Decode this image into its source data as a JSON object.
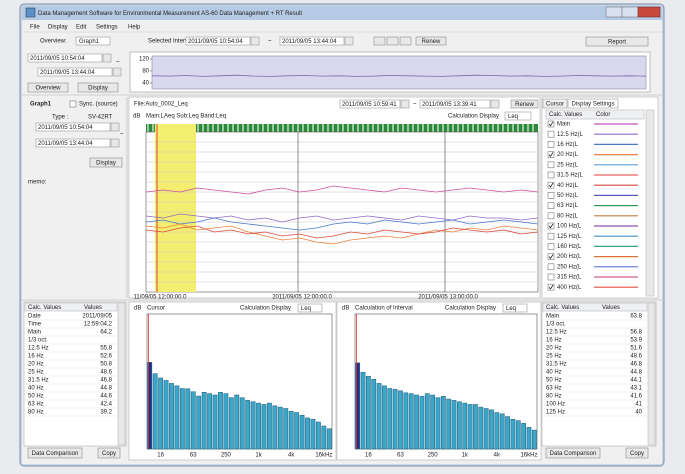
{
  "window_title": "Data Management Software for Environmental Measurement AS-60 Data Management + RT Result",
  "menu": [
    "File",
    "Display",
    "Edit",
    "Settings",
    "Help"
  ],
  "toolbar": {
    "overview_label": "Overview:",
    "overview_select": "Graph1",
    "interval_label": "Selected Interval:",
    "start": "2011/09/05 10:54:04",
    "tilde": "~",
    "end": "2011/09/05 13:44:04",
    "renew": "Renew",
    "report": "Report"
  },
  "overview": {
    "start": "2011/09/05 10:54:04",
    "tilde": "~",
    "end": "2011/09/05 13:44:04",
    "buttons": [
      "Overview",
      "Display"
    ],
    "chart": {
      "type": "line",
      "ylim": [
        20,
        130
      ],
      "yticks": [
        40,
        80,
        120
      ],
      "color": "#7a6aa8",
      "fill": "#d9d8ef",
      "values": [
        64,
        63,
        65,
        62,
        64,
        66,
        63,
        62,
        64,
        65,
        63,
        64,
        62,
        63,
        65,
        64,
        63,
        62,
        64,
        66,
        65,
        63,
        64,
        62,
        63,
        65,
        64,
        63,
        64,
        63
      ]
    }
  },
  "graph_panel": {
    "title": "Graph1",
    "sync": "Sync. (source)",
    "type_label": "Type :",
    "type_value": "SV-42RT",
    "start": "2011/09/05 10:54:04",
    "tilde": "~",
    "end": "2011/09/05 13:44:04",
    "display": "Display",
    "memo": "memo:"
  },
  "main_graph": {
    "file": "File:Auto_0002_Leq",
    "start": "2011/09/05 10:59:41",
    "tilde": "~",
    "end": "2011/09/05 13:39:41",
    "renew": "Renew",
    "unit": "dB",
    "subtitle": "Main:LAeq  Sub:Leq  Band:Leq",
    "calc_label": "Calculation Display",
    "calc_value": "Leq",
    "x_labels": [
      "11/09/05 12:00:00.0",
      "2011/09/05 12:00:00.0",
      "2011/09/05 13:00:00.0"
    ],
    "chart": {
      "type": "line",
      "ylim": [
        20,
        100
      ],
      "yticks": [
        25,
        30,
        35,
        40,
        45,
        50,
        55,
        60,
        65,
        70,
        75,
        80,
        85,
        90,
        95
      ],
      "grid": true,
      "series": [
        {
          "name": "Main",
          "color": "#d04fa0",
          "values": [
            70,
            71,
            70,
            72,
            71,
            70,
            69,
            71,
            72,
            70,
            71,
            73,
            72,
            71,
            70,
            72,
            71,
            70,
            71,
            72,
            71,
            70,
            71,
            70
          ]
        },
        {
          "name": "12.5 Hz",
          "color": "#8e6cc4",
          "values": [
            58,
            57,
            59,
            58,
            57,
            58,
            56,
            57,
            55,
            57,
            58,
            56,
            57,
            58,
            57,
            56,
            58,
            57,
            56,
            58,
            57,
            57,
            56,
            57
          ]
        },
        {
          "name": "16 Hz",
          "color": "#4a78c8",
          "values": [
            55,
            56,
            54,
            55,
            57,
            55,
            54,
            53,
            52,
            51,
            52,
            54,
            55,
            54,
            56,
            55,
            54,
            55,
            56,
            54,
            55,
            56,
            55,
            54
          ]
        },
        {
          "name": "20 Hz",
          "color": "#e8823c",
          "values": [
            53,
            52,
            54,
            51,
            52,
            53,
            50,
            48,
            46,
            47,
            45,
            44,
            46,
            47,
            48,
            47,
            49,
            51,
            50,
            52,
            51,
            53,
            52,
            51
          ]
        },
        {
          "name": "40 Hz",
          "color": "#d8483c",
          "values": [
            51,
            50,
            52,
            53,
            50,
            51,
            49,
            50,
            48,
            49,
            47,
            48,
            50,
            49,
            51,
            50,
            49,
            50,
            52,
            51,
            50,
            51,
            49,
            50
          ]
        }
      ]
    }
  },
  "settings_panel": {
    "tabs": [
      "Cursor",
      "Display Settings"
    ],
    "headers": [
      "Calc. Values",
      "Color"
    ],
    "items": [
      {
        "label": "Main",
        "checked": true,
        "color": "#c050c0"
      },
      {
        "label": "12.5 Hz(L",
        "checked": false,
        "color": "#8e6cc4"
      },
      {
        "label": "16 Hz(L",
        "checked": false,
        "color": "#4a78c8"
      },
      {
        "label": "20 Hz(L",
        "checked": true,
        "color": "#e8823c"
      },
      {
        "label": "25 Hz(L",
        "checked": false,
        "color": "#5aa0d8"
      },
      {
        "label": "31.5 Hz(L",
        "checked": false,
        "color": "#e86060"
      },
      {
        "label": "40 Hz(L",
        "checked": true,
        "color": "#d8483c"
      },
      {
        "label": "50 Hz(L",
        "checked": false,
        "color": "#5060c0"
      },
      {
        "label": "63 Hz(L",
        "checked": false,
        "color": "#3a9a5a"
      },
      {
        "label": "80 Hz(L",
        "checked": false,
        "color": "#c08040"
      },
      {
        "label": "100 Hz(L",
        "checked": true,
        "color": "#9050b0"
      },
      {
        "label": "125 Hz(L",
        "checked": false,
        "color": "#4090c0"
      },
      {
        "label": "160 Hz(L",
        "checked": false,
        "color": "#40a080"
      },
      {
        "label": "200 Hz(L",
        "checked": true,
        "color": "#e07030"
      },
      {
        "label": "250 Hz(L",
        "checked": false,
        "color": "#6070d0"
      },
      {
        "label": "315 Hz(L",
        "checked": false,
        "color": "#d06090"
      },
      {
        "label": "400 Hz(L",
        "checked": true,
        "color": "#e05040"
      }
    ]
  },
  "bands": [
    "12.5 Hz",
    "16 Hz",
    "20 Hz",
    "25 Hz",
    "31.5 Hz",
    "40 Hz",
    "50 Hz",
    "63 Hz",
    "80 Hz",
    "100 Hz",
    "125 Hz"
  ],
  "left_table": {
    "headers": [
      "Calc. Values",
      "Values"
    ],
    "date_label": "Date",
    "date": "2011/09/05",
    "time_label": "Time",
    "time": "12:59:04.2",
    "main_label": "Main",
    "oct_label": "1/3 oct.",
    "buttons": [
      "Data Comparison",
      "Copy"
    ]
  },
  "right_table": {
    "headers": [
      "Calc. Values",
      "Values"
    ],
    "main_label": "Main",
    "oct_label": "1/3 oct.",
    "buttons": [
      "Data Comparison",
      "Copy"
    ]
  },
  "bottom_charts": [
    {
      "type": "bar",
      "unit": "dB",
      "title": "Cursor",
      "calc_label": "Calculation Display",
      "calc_value": "Leq",
      "ylim": [
        0,
        100
      ],
      "main_color": "#1f2f8a",
      "color": "#3aa6c8",
      "categories": [
        null,
        null,
        "16",
        null,
        null,
        null,
        null,
        null,
        "63",
        null,
        null,
        null,
        null,
        null,
        "250",
        null,
        null,
        null,
        null,
        null,
        "1k",
        null,
        null,
        null,
        null,
        null,
        "4k",
        null,
        null,
        null,
        null,
        null,
        "16kHz",
        null
      ],
      "values": [
        64.2,
        55.8,
        52.6,
        50.8,
        48.6,
        46.8,
        44.8,
        44.6,
        42.4,
        39.2,
        42,
        41,
        40,
        42,
        41,
        38,
        40,
        38,
        36,
        35,
        34,
        33,
        34,
        32,
        31,
        30,
        28,
        27,
        25,
        23,
        22,
        20,
        17,
        15
      ]
    },
    {
      "type": "bar",
      "unit": "dB",
      "title": "Calculation of Interval",
      "calc_label": "Calculation Display",
      "calc_value": "Leq",
      "ylim": [
        0,
        100
      ],
      "main_color": "#1f2f8a",
      "color": "#3aa6c8",
      "categories": [
        null,
        null,
        "16",
        null,
        null,
        null,
        null,
        null,
        "63",
        null,
        null,
        null,
        null,
        null,
        "250",
        null,
        null,
        null,
        null,
        null,
        "1k",
        null,
        null,
        null,
        null,
        null,
        "4k",
        null,
        null,
        null,
        null,
        null,
        "16kHz",
        null
      ],
      "values": [
        63.8,
        56.8,
        53.9,
        51.6,
        48.6,
        46.8,
        44.8,
        44.1,
        43.1,
        41.6,
        41,
        40,
        39,
        41,
        40,
        38,
        39,
        37,
        36,
        35,
        34,
        33,
        33,
        31,
        30,
        29,
        27,
        26,
        24,
        22,
        21,
        19,
        16,
        14
      ]
    }
  ]
}
